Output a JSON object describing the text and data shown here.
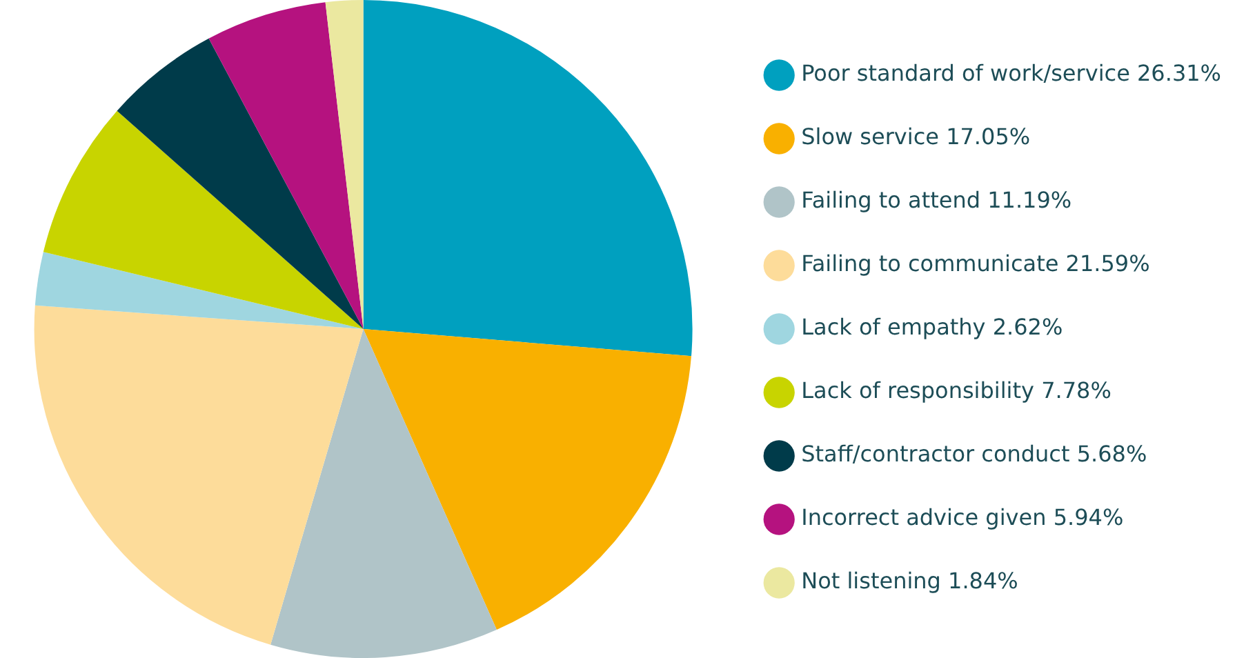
{
  "chart_data": {
    "type": "pie",
    "categories": [
      "Poor standard of work/service",
      "Slow service",
      "Failing to attend",
      "Failing to communicate",
      "Lack of empathy",
      "Lack of responsibility",
      "Staff/contractor conduct",
      "Incorrect advice given",
      "Not listening"
    ],
    "values": [
      26.31,
      17.05,
      11.19,
      21.59,
      2.62,
      7.78,
      5.68,
      5.94,
      1.84
    ],
    "value_labels": [
      "26.31%",
      "17.05%",
      "11.19%",
      "21.59%",
      "2.62%",
      "7.78%",
      "5.68%",
      "5.94%",
      "1.84%"
    ],
    "colors": [
      "#00a0bf",
      "#f9b000",
      "#b0c4c8",
      "#fddc9a",
      "#9fd6e0",
      "#c8d400",
      "#003b4a",
      "#b5127f",
      "#ebe8a0"
    ],
    "legend": "right"
  }
}
